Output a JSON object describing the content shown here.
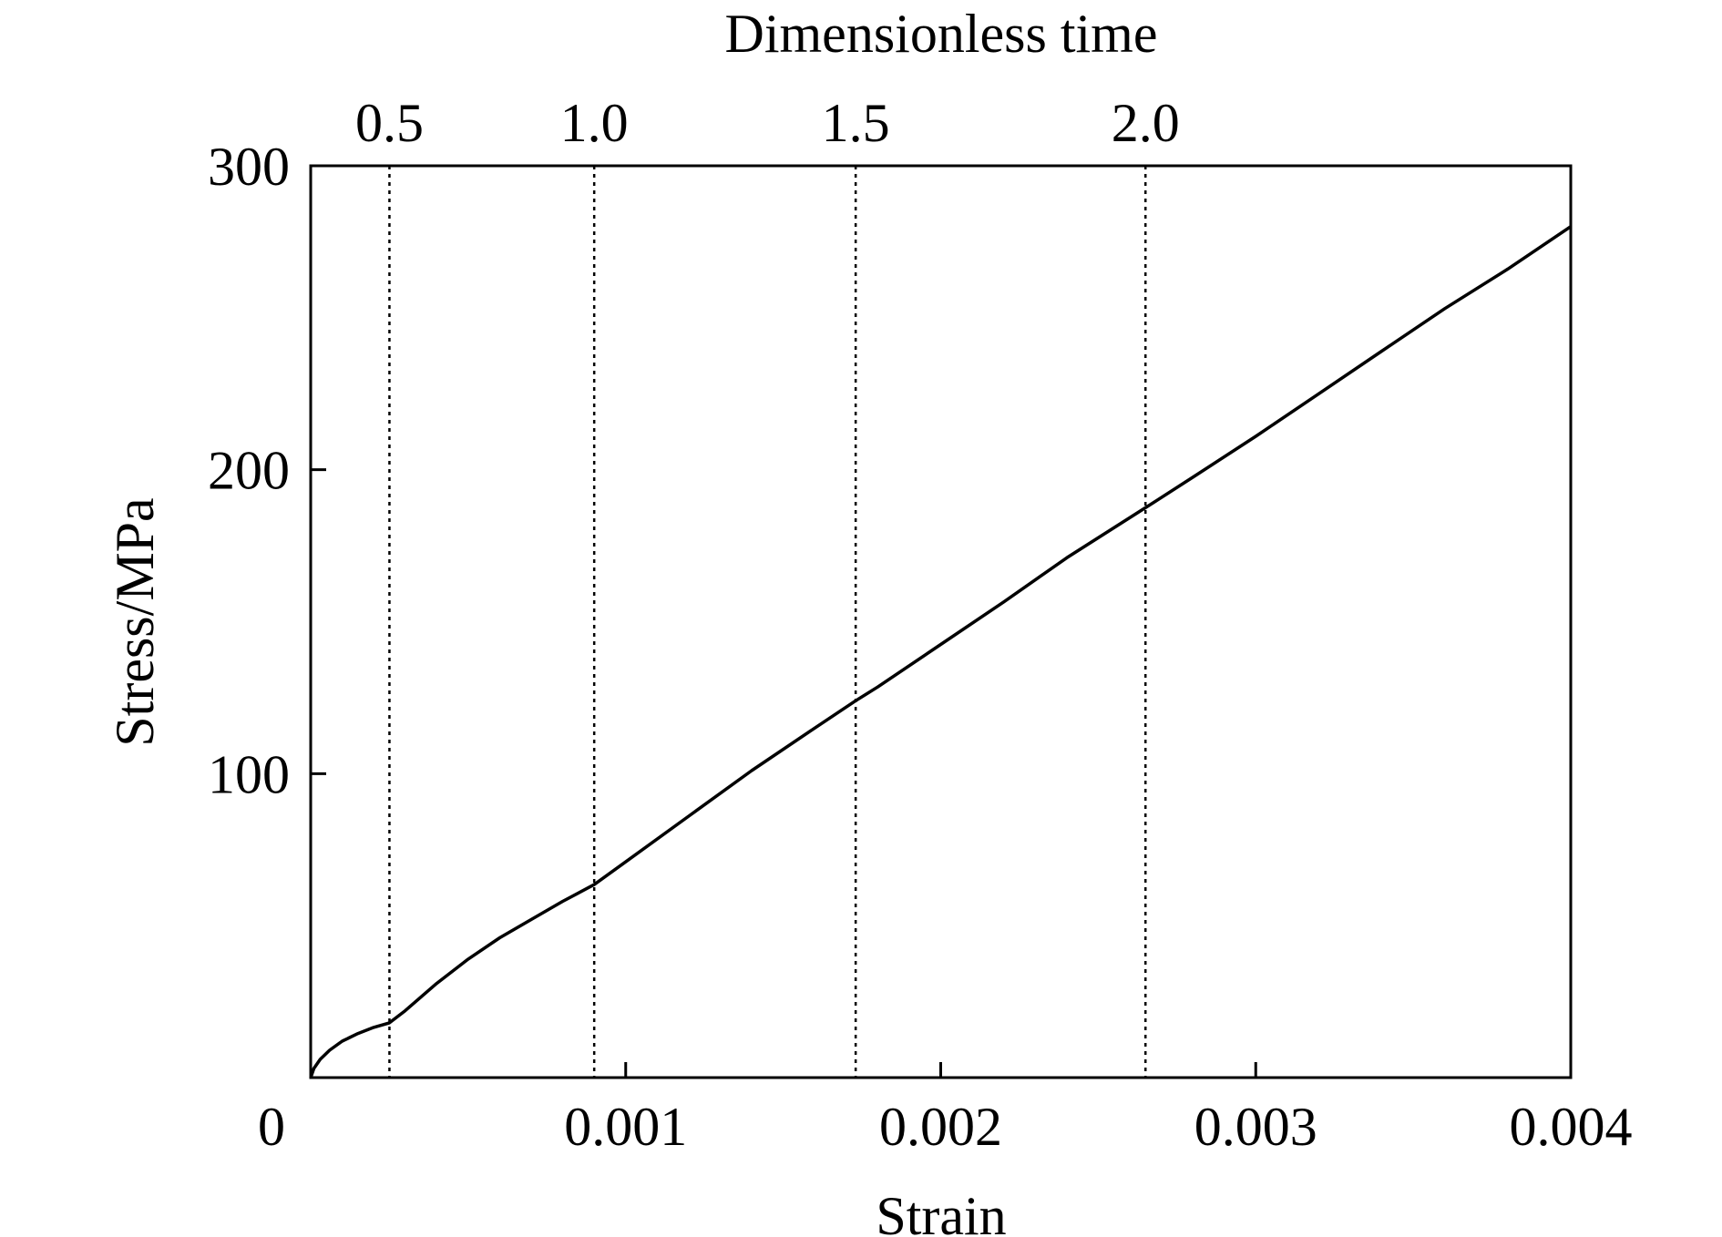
{
  "chart_data": {
    "type": "line",
    "title": "",
    "xlabel": "Strain",
    "ylabel": "Stress/MPa",
    "x2label": "Dimensionless time",
    "xlim": [
      0,
      0.004
    ],
    "ylim": [
      0,
      300
    ],
    "grid": false,
    "x_ticks": [
      {
        "value": 0,
        "label": "0"
      },
      {
        "value": 0.001,
        "label": "0.001"
      },
      {
        "value": 0.002,
        "label": "0.002"
      },
      {
        "value": 0.003,
        "label": "0.003"
      },
      {
        "value": 0.004,
        "label": "0.004"
      }
    ],
    "y_ticks": [
      {
        "value": 100,
        "label": "100"
      },
      {
        "value": 200,
        "label": "200"
      },
      {
        "value": 300,
        "label": "300"
      }
    ],
    "top_ticks": [
      {
        "strain": 0.00025,
        "label": "0.5"
      },
      {
        "strain": 0.0009,
        "label": "1.0"
      },
      {
        "strain": 0.00173,
        "label": "1.5"
      },
      {
        "strain": 0.00265,
        "label": "2.0"
      }
    ],
    "series": [
      {
        "x": [
          0,
          1e-05,
          3e-05,
          6e-05,
          0.0001,
          0.00015,
          0.0002,
          0.00025,
          0.0003,
          0.0004,
          0.0005,
          0.0006,
          0.0007,
          0.0008,
          0.0009,
          0.001,
          0.0012,
          0.0014,
          0.0016,
          0.00173,
          0.0018,
          0.002,
          0.0022,
          0.0024,
          0.00265,
          0.0028,
          0.003,
          0.0032,
          0.0034,
          0.0036,
          0.0038,
          0.004
        ],
        "y": [
          0,
          3,
          6,
          9,
          12,
          14.5,
          16.5,
          18,
          22,
          31,
          39,
          46,
          52,
          58,
          63.5,
          71,
          86,
          101,
          115,
          124,
          128.5,
          142.5,
          156.5,
          171,
          187.5,
          197.5,
          211,
          225,
          239,
          253,
          266,
          280
        ]
      }
    ],
    "colors": {
      "line": "#000000",
      "frame": "#000000",
      "guide": "#000000"
    }
  }
}
